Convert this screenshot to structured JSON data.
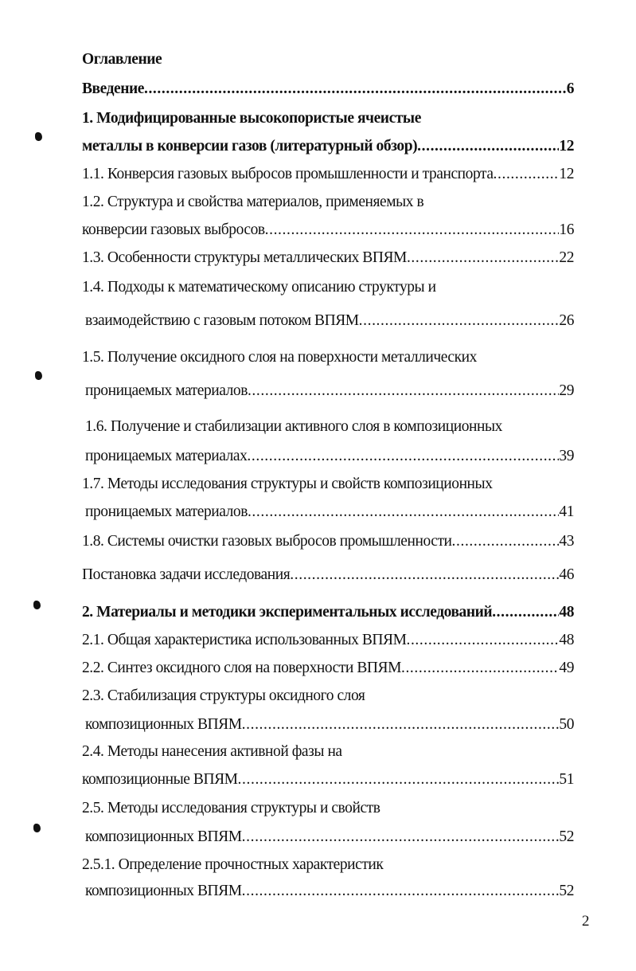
{
  "toc": {
    "title": "Оглавление",
    "entries": [
      {
        "text": "Введение",
        "page": "6",
        "bold": true
      },
      {
        "text": "1. Модифицированные высокопористые ячеистые",
        "bold": true
      },
      {
        "text": "металлы в конверсии газов (литературный обзор)",
        "page": "12",
        "bold": true
      },
      {
        "text": "1.1. Конверсия газовых выбросов промышленности и транспорта",
        "page": "12"
      },
      {
        "text": "1.2. Структура и свойства материалов, применяемых в"
      },
      {
        "text": "конверсии газовых выбросов",
        "page": "16"
      },
      {
        "text": "1.3. Особенности структуры металлических ВПЯМ",
        "page": "22"
      },
      {
        "text": "1.4. Подходы к математическому описанию структуры и"
      },
      {
        "text": "взаимодействию с газовым потоком ВПЯМ",
        "page": "26"
      },
      {
        "text": "1.5. Получение оксидного слоя на поверхности металлических"
      },
      {
        "text": "проницаемых материалов",
        "page": "29"
      },
      {
        "text": "1.6. Получение и стабилизации активного слоя в композиционных"
      },
      {
        "text": "проницаемых материалах",
        "page": "39"
      },
      {
        "text": "1.7. Методы исследования структуры и свойств композиционных"
      },
      {
        "text": "проницаемых материалов",
        "page": "41"
      },
      {
        "text": "1.8. Системы очистки газовых выбросов промышленности",
        "page": "43"
      },
      {
        "text": "Постановка задачи исследования",
        "page": "46"
      },
      {
        "text": "2.  Материалы и методики  экспериментальных исследований",
        "page": "48",
        "bold": true
      },
      {
        "text": "2.1. Общая характеристика использованных ВПЯМ",
        "page": "48"
      },
      {
        "text": "2.2. Синтез оксидного слоя на поверхности ВПЯМ",
        "page": "49"
      },
      {
        "text": "2.3. Стабилизация структуры оксидного слоя"
      },
      {
        "text": "композиционных ВПЯМ",
        "page": "50"
      },
      {
        "text": "2.4. Методы нанесения активной фазы на"
      },
      {
        "text": "композиционные ВПЯМ",
        "page": "51"
      },
      {
        "text": "2.5. Методы исследования структуры и свойств"
      },
      {
        "text": "композиционных ВПЯМ",
        "page": "52"
      },
      {
        "text": "2.5.1. Определение прочностных характеристик"
      },
      {
        "text": "композиционных ВПЯМ",
        "page": "52"
      }
    ]
  },
  "page_number": "2"
}
